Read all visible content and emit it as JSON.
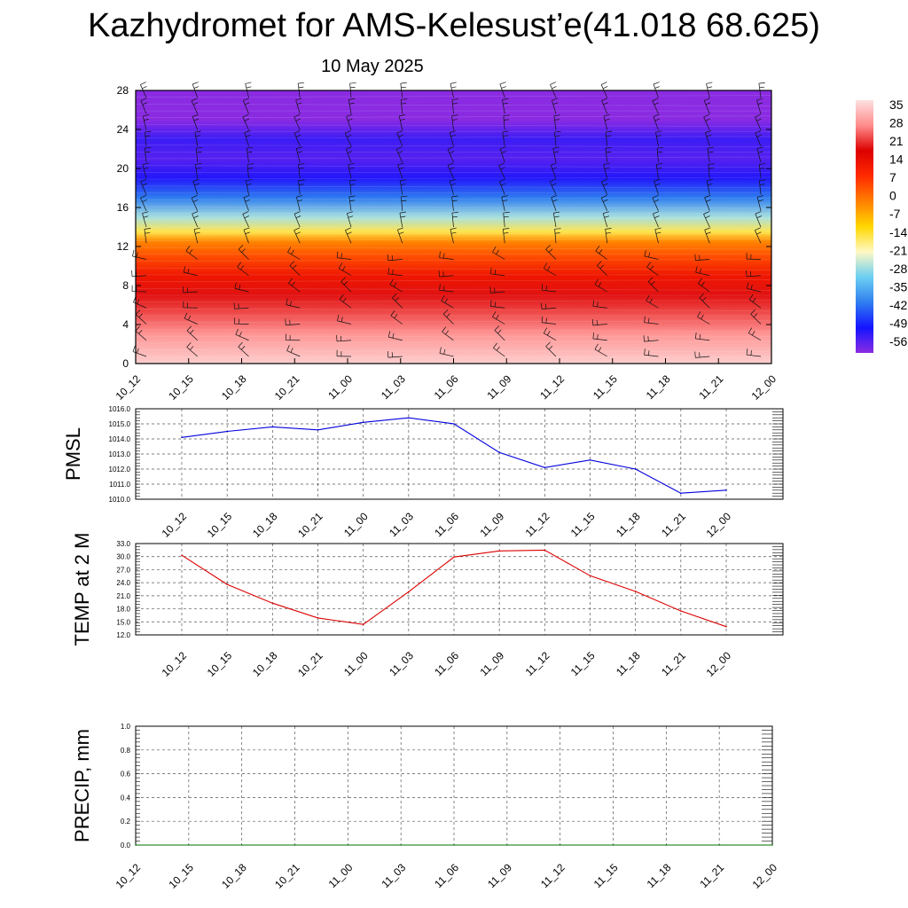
{
  "title": "Kazhydromet for AMS-Kelesust’e(41.018 68.625)",
  "subtitle": "10 May 2025",
  "colors": {
    "pmsl_line": "#0000dd",
    "temp_line": "#dd0000",
    "precip_line": "#007000",
    "temperature_scale": [
      "#8a2be2",
      "#1414ff",
      "#2f7ef0",
      "#6ccff2",
      "#fff9c4",
      "#ffd700",
      "#ff7f00",
      "#ff2a00",
      "#dd0000",
      "#ff8c8c",
      "#fde0e0"
    ]
  },
  "chart_data": [
    {
      "type": "heatmap",
      "name": "upper-air-profile",
      "x": [
        "10_12",
        "10_15",
        "10_18",
        "10_21",
        "11_00",
        "11_03",
        "11_06",
        "11_09",
        "11_12",
        "11_15",
        "11_18",
        "11_21",
        "12_00"
      ],
      "y_ticks": [
        0,
        4,
        8,
        12,
        16,
        20,
        24,
        28
      ],
      "ylim": [
        0,
        28
      ],
      "colorbar_ticks": [
        "35",
        "28",
        "21",
        "14",
        "7",
        "0",
        "-7",
        "-14",
        "-21",
        "-28",
        "-35",
        "-42",
        "-49",
        "-56"
      ],
      "colorbar_range": [
        -56,
        35
      ],
      "color_stops": [
        {
          "y": 0,
          "value": 33
        },
        {
          "y": 1,
          "value": 31
        },
        {
          "y": 3,
          "value": 27
        },
        {
          "y": 5,
          "value": 22
        },
        {
          "y": 7,
          "value": 18
        },
        {
          "y": 9,
          "value": 12
        },
        {
          "y": 11,
          "value": 4
        },
        {
          "y": 12.5,
          "value": -2
        },
        {
          "y": 13.5,
          "value": -14
        },
        {
          "y": 15,
          "value": -25
        },
        {
          "y": 17,
          "value": -38
        },
        {
          "y": 19,
          "value": -48
        },
        {
          "y": 21,
          "value": -52
        },
        {
          "y": 23,
          "value": -50
        },
        {
          "y": 25,
          "value": -56
        },
        {
          "y": 28,
          "value": -58
        }
      ],
      "wind_barbs": true
    },
    {
      "type": "line",
      "ylabel": "PMSL",
      "x": [
        "10_12",
        "10_15",
        "10_18",
        "10_21",
        "11_00",
        "11_03",
        "11_06",
        "11_09",
        "11_12",
        "11_15",
        "11_18",
        "11_21",
        "12_00"
      ],
      "values": [
        1014.1,
        1014.5,
        1014.8,
        1014.6,
        1015.1,
        1015.4,
        1015.0,
        1013.1,
        1012.1,
        1012.6,
        1012.0,
        1010.4,
        1010.6
      ],
      "ylim": [
        1010.0,
        1016.0
      ],
      "y_ticks": [
        "1010.0",
        "1011.0",
        "1012.0",
        "1013.0",
        "1014.0",
        "1015.0",
        "1016.0"
      ],
      "grid": true
    },
    {
      "type": "line",
      "ylabel": "TEMP at 2 M",
      "x": [
        "10_12",
        "10_15",
        "10_18",
        "10_21",
        "11_00",
        "11_03",
        "11_06",
        "11_09",
        "11_12",
        "11_15",
        "11_18",
        "11_21",
        "12_00"
      ],
      "values": [
        30.3,
        23.6,
        19.3,
        15.9,
        14.4,
        21.9,
        29.9,
        31.3,
        31.5,
        25.6,
        22.0,
        17.5,
        13.9
      ],
      "ylim": [
        12.0,
        33.0
      ],
      "y_ticks": [
        "12.0",
        "15.0",
        "18.0",
        "21.0",
        "24.0",
        "27.0",
        "30.0",
        "33.0"
      ],
      "grid": true
    },
    {
      "type": "line",
      "ylabel": "PRECIP, mm",
      "x": [
        "10_12",
        "10_15",
        "10_18",
        "10_21",
        "11_00",
        "11_03",
        "11_06",
        "11_09",
        "11_12",
        "11_15",
        "11_18",
        "11_21",
        "12_00"
      ],
      "values": [
        0,
        0,
        0,
        0,
        0,
        0,
        0,
        0,
        0,
        0,
        0,
        0,
        0
      ],
      "ylim": [
        0.0,
        1.0
      ],
      "y_ticks": [
        "0.0",
        "0.2",
        "0.4",
        "0.6",
        "0.8",
        "1.0"
      ],
      "grid": true
    }
  ]
}
